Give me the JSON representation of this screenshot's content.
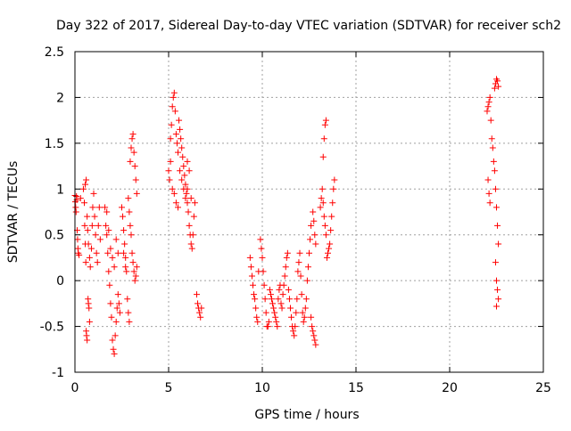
{
  "chart_data": {
    "type": "scatter",
    "title": "Day 322 of 2017, Sidereal Day-to-day VTEC variation (SDTVAR) for receiver sch2",
    "xlabel": "GPS time / hours",
    "ylabel": "SDTVAR / TECUs",
    "xlim": [
      0,
      25
    ],
    "ylim": [
      -1,
      2.5
    ],
    "xticks": [
      0,
      5,
      10,
      15,
      20,
      25
    ],
    "xtick_labels": [
      "0",
      "5",
      "10",
      "15",
      "20",
      "25"
    ],
    "yticks": [
      -1,
      -0.5,
      0,
      0.5,
      1,
      1.5,
      2,
      2.5
    ],
    "ytick_labels": [
      "-1",
      "-0.5",
      "0",
      "0.5",
      "1",
      "1.5",
      "2",
      "2.5"
    ],
    "grid": true,
    "marker": "+",
    "marker_color": "#ff0000",
    "series": [
      {
        "name": "SDTVAR",
        "points": [
          [
            0.0,
            0.93
          ],
          [
            0.02,
            0.86
          ],
          [
            0.04,
            0.8
          ],
          [
            0.06,
            0.75
          ],
          [
            0.08,
            0.92
          ],
          [
            0.1,
            0.88
          ],
          [
            0.12,
            0.55
          ],
          [
            0.14,
            0.45
          ],
          [
            0.16,
            0.35
          ],
          [
            0.18,
            0.3
          ],
          [
            0.22,
            0.28
          ],
          [
            0.3,
            0.9
          ],
          [
            0.45,
            1.0
          ],
          [
            0.5,
            0.85
          ],
          [
            0.52,
            0.6
          ],
          [
            0.55,
            0.4
          ],
          [
            0.58,
            0.2
          ],
          [
            0.6,
            -0.55
          ],
          [
            0.62,
            -0.6
          ],
          [
            0.65,
            -0.65
          ],
          [
            0.7,
            -0.2
          ],
          [
            0.72,
            -0.25
          ],
          [
            0.75,
            -0.3
          ],
          [
            0.78,
            -0.45
          ],
          [
            0.55,
            1.05
          ],
          [
            0.6,
            1.1
          ],
          [
            0.65,
            0.7
          ],
          [
            0.68,
            0.55
          ],
          [
            0.72,
            0.4
          ],
          [
            0.78,
            0.25
          ],
          [
            0.82,
            0.15
          ],
          [
            0.88,
            0.35
          ],
          [
            0.92,
            0.6
          ],
          [
            0.95,
            0.8
          ],
          [
            1.0,
            0.95
          ],
          [
            1.05,
            0.7
          ],
          [
            1.1,
            0.5
          ],
          [
            1.15,
            0.3
          ],
          [
            1.2,
            0.2
          ],
          [
            1.25,
            0.6
          ],
          [
            1.3,
            0.8
          ],
          [
            1.35,
            0.45
          ],
          [
            1.6,
            0.8
          ],
          [
            1.65,
            0.6
          ],
          [
            1.7,
            0.5
          ],
          [
            1.75,
            0.3
          ],
          [
            1.8,
            0.1
          ],
          [
            1.85,
            -0.05
          ],
          [
            1.9,
            -0.25
          ],
          [
            1.95,
            -0.4
          ],
          [
            2.0,
            -0.65
          ],
          [
            2.05,
            -0.75
          ],
          [
            2.1,
            -0.8
          ],
          [
            2.15,
            -0.6
          ],
          [
            2.2,
            -0.45
          ],
          [
            2.25,
            -0.3
          ],
          [
            2.3,
            -0.15
          ],
          [
            2.35,
            -0.25
          ],
          [
            2.4,
            -0.35
          ],
          [
            1.7,
            0.75
          ],
          [
            1.8,
            0.55
          ],
          [
            1.9,
            0.35
          ],
          [
            2.0,
            0.25
          ],
          [
            2.1,
            0.15
          ],
          [
            2.2,
            0.45
          ],
          [
            2.3,
            0.3
          ],
          [
            2.5,
            0.8
          ],
          [
            2.55,
            0.7
          ],
          [
            2.6,
            0.55
          ],
          [
            2.65,
            0.4
          ],
          [
            2.7,
            0.25
          ],
          [
            2.75,
            0.1
          ],
          [
            2.8,
            -0.2
          ],
          [
            2.85,
            -0.35
          ],
          [
            2.9,
            -0.45
          ],
          [
            2.6,
            0.3
          ],
          [
            2.7,
            0.15
          ],
          [
            2.85,
            0.9
          ],
          [
            2.9,
            0.75
          ],
          [
            2.95,
            0.6
          ],
          [
            3.0,
            0.5
          ],
          [
            3.05,
            0.3
          ],
          [
            3.1,
            0.2
          ],
          [
            3.15,
            0.1
          ],
          [
            3.2,
            0.0
          ],
          [
            3.25,
            0.05
          ],
          [
            3.3,
            0.15
          ],
          [
            2.95,
            1.3
          ],
          [
            3.0,
            1.45
          ],
          [
            3.05,
            1.55
          ],
          [
            3.1,
            1.6
          ],
          [
            3.15,
            1.4
          ],
          [
            3.2,
            1.25
          ],
          [
            3.25,
            1.1
          ],
          [
            3.3,
            0.95
          ],
          [
            5.1,
            1.55
          ],
          [
            5.15,
            1.7
          ],
          [
            5.2,
            1.9
          ],
          [
            5.25,
            2.0
          ],
          [
            5.3,
            2.05
          ],
          [
            5.35,
            1.85
          ],
          [
            5.4,
            1.6
          ],
          [
            5.45,
            1.5
          ],
          [
            5.5,
            1.4
          ],
          [
            5.0,
            1.2
          ],
          [
            5.05,
            1.1
          ],
          [
            5.1,
            1.3
          ],
          [
            5.2,
            1.0
          ],
          [
            5.3,
            0.95
          ],
          [
            5.4,
            0.85
          ],
          [
            5.5,
            0.8
          ],
          [
            5.55,
            1.75
          ],
          [
            5.6,
            1.65
          ],
          [
            5.65,
            1.55
          ],
          [
            5.7,
            1.45
          ],
          [
            5.75,
            1.35
          ],
          [
            5.8,
            1.25
          ],
          [
            5.85,
            1.15
          ],
          [
            5.9,
            1.05
          ],
          [
            5.95,
            0.95
          ],
          [
            6.0,
            0.85
          ],
          [
            5.6,
            1.2
          ],
          [
            5.7,
            1.1
          ],
          [
            5.8,
            1.0
          ],
          [
            5.9,
            0.9
          ],
          [
            6.0,
            1.0
          ],
          [
            6.05,
            0.75
          ],
          [
            6.1,
            0.6
          ],
          [
            6.15,
            0.5
          ],
          [
            6.2,
            0.4
          ],
          [
            6.25,
            0.35
          ],
          [
            6.3,
            0.5
          ],
          [
            6.35,
            0.7
          ],
          [
            6.4,
            0.85
          ],
          [
            6.0,
            1.3
          ],
          [
            6.1,
            1.2
          ],
          [
            6.2,
            0.9
          ],
          [
            6.5,
            -0.15
          ],
          [
            6.55,
            -0.25
          ],
          [
            6.6,
            -0.3
          ],
          [
            6.65,
            -0.35
          ],
          [
            6.7,
            -0.4
          ],
          [
            6.75,
            -0.3
          ],
          [
            9.35,
            0.25
          ],
          [
            9.4,
            0.15
          ],
          [
            9.45,
            0.05
          ],
          [
            9.5,
            -0.05
          ],
          [
            9.55,
            -0.15
          ],
          [
            9.6,
            -0.2
          ],
          [
            9.65,
            -0.3
          ],
          [
            9.7,
            -0.4
          ],
          [
            9.75,
            -0.45
          ],
          [
            9.8,
            0.1
          ],
          [
            9.9,
            0.45
          ],
          [
            9.95,
            0.35
          ],
          [
            10.0,
            0.25
          ],
          [
            10.05,
            0.1
          ],
          [
            10.1,
            -0.05
          ],
          [
            10.15,
            -0.2
          ],
          [
            10.2,
            -0.35
          ],
          [
            10.25,
            -0.5
          ],
          [
            10.3,
            -0.5
          ],
          [
            10.35,
            -0.45
          ],
          [
            10.4,
            -0.1
          ],
          [
            10.45,
            -0.15
          ],
          [
            10.5,
            -0.2
          ],
          [
            10.55,
            -0.25
          ],
          [
            10.6,
            -0.3
          ],
          [
            10.65,
            -0.35
          ],
          [
            10.7,
            -0.4
          ],
          [
            10.75,
            -0.45
          ],
          [
            10.8,
            -0.5
          ],
          [
            10.85,
            -0.2
          ],
          [
            10.9,
            -0.1
          ],
          [
            10.95,
            -0.05
          ],
          [
            11.0,
            -0.25
          ],
          [
            11.05,
            -0.3
          ],
          [
            11.1,
            -0.15
          ],
          [
            11.15,
            -0.05
          ],
          [
            11.2,
            0.05
          ],
          [
            11.25,
            0.15
          ],
          [
            11.3,
            0.25
          ],
          [
            11.35,
            0.3
          ],
          [
            11.4,
            -0.1
          ],
          [
            11.45,
            -0.2
          ],
          [
            11.5,
            -0.3
          ],
          [
            11.55,
            -0.4
          ],
          [
            11.6,
            -0.5
          ],
          [
            11.65,
            -0.55
          ],
          [
            11.7,
            -0.6
          ],
          [
            11.75,
            -0.5
          ],
          [
            11.8,
            -0.35
          ],
          [
            11.85,
            -0.2
          ],
          [
            11.9,
            0.1
          ],
          [
            11.95,
            0.2
          ],
          [
            12.0,
            0.3
          ],
          [
            12.05,
            0.05
          ],
          [
            12.1,
            -0.15
          ],
          [
            12.15,
            -0.35
          ],
          [
            12.2,
            -0.45
          ],
          [
            12.25,
            -0.4
          ],
          [
            12.3,
            -0.3
          ],
          [
            12.35,
            -0.2
          ],
          [
            12.4,
            0.0
          ],
          [
            12.45,
            0.15
          ],
          [
            12.5,
            0.3
          ],
          [
            12.55,
            0.45
          ],
          [
            12.6,
            0.6
          ],
          [
            12.6,
            -0.4
          ],
          [
            12.65,
            -0.5
          ],
          [
            12.7,
            -0.55
          ],
          [
            12.75,
            -0.6
          ],
          [
            12.8,
            -0.65
          ],
          [
            12.85,
            -0.7
          ],
          [
            12.7,
            0.75
          ],
          [
            12.75,
            0.65
          ],
          [
            12.8,
            0.5
          ],
          [
            12.85,
            0.4
          ],
          [
            13.1,
            0.8
          ],
          [
            13.15,
            0.9
          ],
          [
            13.2,
            1.0
          ],
          [
            13.25,
            0.85
          ],
          [
            13.3,
            0.7
          ],
          [
            13.35,
            0.6
          ],
          [
            13.4,
            0.5
          ],
          [
            13.25,
            1.35
          ],
          [
            13.3,
            1.55
          ],
          [
            13.35,
            1.7
          ],
          [
            13.4,
            1.75
          ],
          [
            13.45,
            0.25
          ],
          [
            13.5,
            0.3
          ],
          [
            13.55,
            0.35
          ],
          [
            13.6,
            0.4
          ],
          [
            13.65,
            0.55
          ],
          [
            13.7,
            0.7
          ],
          [
            13.75,
            0.85
          ],
          [
            13.8,
            1.0
          ],
          [
            13.85,
            1.1
          ],
          [
            22.0,
            1.85
          ],
          [
            22.05,
            1.9
          ],
          [
            22.1,
            1.95
          ],
          [
            22.15,
            2.0
          ],
          [
            22.2,
            1.75
          ],
          [
            22.25,
            1.55
          ],
          [
            22.3,
            1.45
          ],
          [
            22.05,
            1.1
          ],
          [
            22.1,
            0.95
          ],
          [
            22.15,
            0.85
          ],
          [
            22.35,
            1.3
          ],
          [
            22.4,
            1.2
          ],
          [
            22.4,
            2.1
          ],
          [
            22.45,
            2.15
          ],
          [
            22.5,
            2.2
          ],
          [
            22.55,
            2.18
          ],
          [
            22.6,
            2.12
          ],
          [
            22.45,
            1.0
          ],
          [
            22.5,
            0.8
          ],
          [
            22.55,
            0.6
          ],
          [
            22.6,
            0.4
          ],
          [
            22.45,
            0.2
          ],
          [
            22.5,
            0.0
          ],
          [
            22.55,
            -0.1
          ],
          [
            22.6,
            -0.2
          ],
          [
            22.5,
            -0.28
          ]
        ]
      }
    ]
  }
}
